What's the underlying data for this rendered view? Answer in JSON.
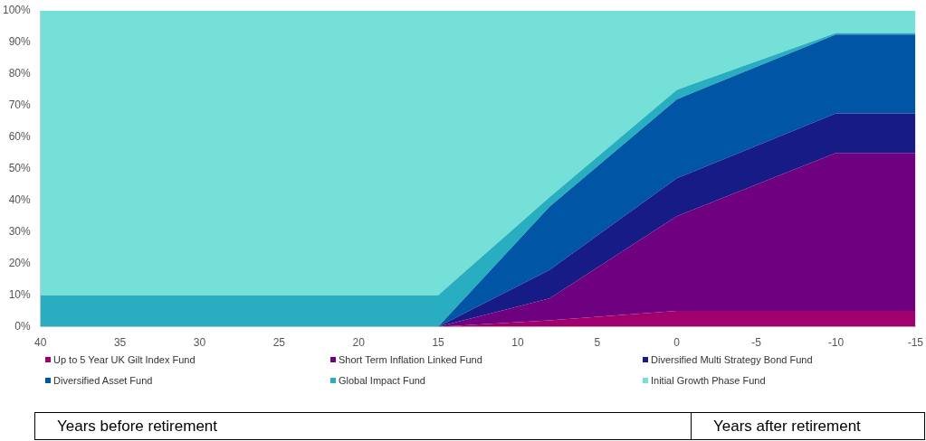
{
  "chart_data": {
    "type": "area",
    "stacked": true,
    "x": [
      40,
      15,
      8,
      0,
      -10,
      -15
    ],
    "xlim": [
      40,
      -15
    ],
    "xticks": [
      40,
      35,
      30,
      25,
      20,
      15,
      10,
      5,
      0,
      -5,
      -10,
      -15
    ],
    "ylim": [
      0,
      100
    ],
    "yticks": [
      {
        "value": 0,
        "label": "0%"
      },
      {
        "value": 10,
        "label": "10%"
      },
      {
        "value": 20,
        "label": "20%"
      },
      {
        "value": 30,
        "label": "30%"
      },
      {
        "value": 40,
        "label": "40%"
      },
      {
        "value": 50,
        "label": "50%"
      },
      {
        "value": 60,
        "label": "60%"
      },
      {
        "value": 70,
        "label": "70%"
      },
      {
        "value": 80,
        "label": "80%"
      },
      {
        "value": 90,
        "label": "90%"
      },
      {
        "value": 100,
        "label": "100%"
      }
    ],
    "grid": false,
    "legend": "bottom",
    "series": [
      {
        "name": "Up to 5 Year UK Gilt Index Fund",
        "color": "#a0006e",
        "values": [
          0,
          0,
          2,
          5,
          5,
          5
        ]
      },
      {
        "name": "Short Term Inflation Linked Fund",
        "color": "#6f0080",
        "values": [
          0,
          0,
          7,
          30,
          50,
          50
        ]
      },
      {
        "name": "Diversified Multi Strategy Bond Fund",
        "color": "#161b85",
        "values": [
          0,
          0,
          9,
          12,
          12.5,
          12.5
        ]
      },
      {
        "name": "Diversified Asset Fund",
        "color": "#0055a5",
        "values": [
          0,
          0,
          20,
          25,
          25,
          25
        ]
      },
      {
        "name": "Global Impact Fund",
        "color": "#28aec0",
        "values": [
          10,
          10,
          3,
          3,
          0.5,
          0.5
        ]
      },
      {
        "name": "Initial Growth Phase Fund",
        "color": "#74e0d8",
        "values": [
          90,
          90,
          59,
          25,
          7,
          7
        ]
      }
    ],
    "annotations": [
      "Years before retirement",
      "Years after retirement"
    ]
  }
}
